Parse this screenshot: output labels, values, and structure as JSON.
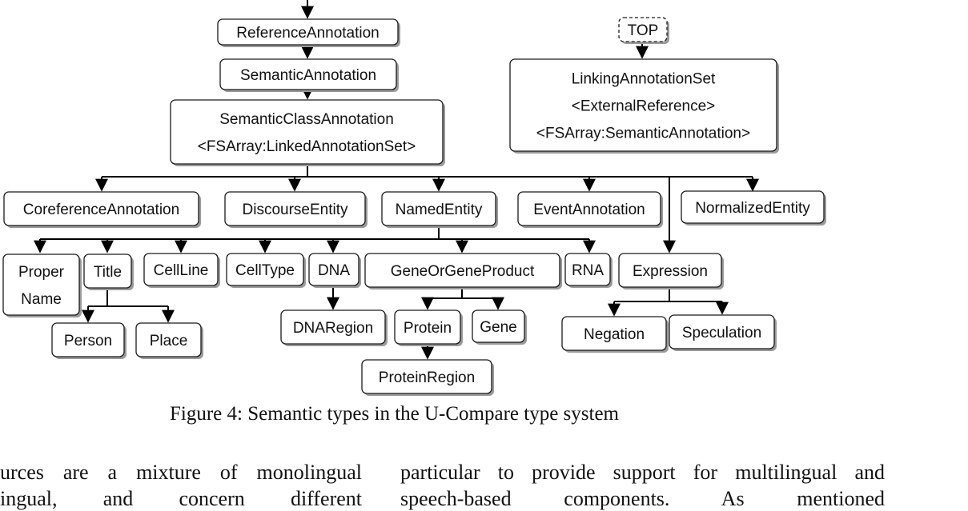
{
  "figure": {
    "caption": "Figure 4: Semantic types in the U-Compare type system",
    "nodes": [
      {
        "id": "reference_annotation",
        "lines": [
          "ReferenceAnnotation"
        ]
      },
      {
        "id": "semantic_annotation",
        "lines": [
          "SemanticAnnotation"
        ]
      },
      {
        "id": "semantic_class_annotation",
        "lines": [
          "SemanticClassAnnotation",
          "<FSArray:LinkedAnnotationSet>"
        ]
      },
      {
        "id": "top",
        "lines": [
          "TOP"
        ],
        "style": "dashed"
      },
      {
        "id": "linking_annotation_set",
        "lines": [
          "LinkingAnnotationSet",
          "<ExternalReference>",
          "<FSArray:SemanticAnnotation>"
        ]
      },
      {
        "id": "coreference_annotation",
        "lines": [
          "CoreferenceAnnotation"
        ]
      },
      {
        "id": "discourse_entity",
        "lines": [
          "DiscourseEntity"
        ]
      },
      {
        "id": "named_entity",
        "lines": [
          "NamedEntity"
        ]
      },
      {
        "id": "event_annotation",
        "lines": [
          "EventAnnotation"
        ]
      },
      {
        "id": "normalized_entity",
        "lines": [
          "NormalizedEntity"
        ]
      },
      {
        "id": "proper_name",
        "lines": [
          "Proper",
          "Name"
        ]
      },
      {
        "id": "title",
        "lines": [
          "Title"
        ]
      },
      {
        "id": "cell_line",
        "lines": [
          "CellLine"
        ]
      },
      {
        "id": "cell_type",
        "lines": [
          "CellType"
        ]
      },
      {
        "id": "dna",
        "lines": [
          "DNA"
        ]
      },
      {
        "id": "gene_or_gene_product",
        "lines": [
          "GeneOrGeneProduct"
        ]
      },
      {
        "id": "rna",
        "lines": [
          "RNA"
        ]
      },
      {
        "id": "expression",
        "lines": [
          "Expression"
        ]
      },
      {
        "id": "person",
        "lines": [
          "Person"
        ]
      },
      {
        "id": "place",
        "lines": [
          "Place"
        ]
      },
      {
        "id": "dna_region",
        "lines": [
          "DNARegion"
        ]
      },
      {
        "id": "protein",
        "lines": [
          "Protein"
        ]
      },
      {
        "id": "gene",
        "lines": [
          "Gene"
        ]
      },
      {
        "id": "protein_region",
        "lines": [
          "ProteinRegion"
        ]
      },
      {
        "id": "negation",
        "lines": [
          "Negation"
        ]
      },
      {
        "id": "speculation",
        "lines": [
          "Speculation"
        ]
      }
    ],
    "edges": [
      {
        "from": "reference_annotation",
        "to": "semantic_annotation"
      },
      {
        "from": "semantic_annotation",
        "to": "semantic_class_annotation"
      },
      {
        "from": "top",
        "to": "linking_annotation_set"
      },
      {
        "from": "semantic_class_annotation",
        "to": "coreference_annotation"
      },
      {
        "from": "semantic_class_annotation",
        "to": "discourse_entity"
      },
      {
        "from": "semantic_class_annotation",
        "to": "named_entity"
      },
      {
        "from": "semantic_class_annotation",
        "to": "event_annotation"
      },
      {
        "from": "semantic_class_annotation",
        "to": "normalized_entity"
      },
      {
        "from": "semantic_class_annotation",
        "to": "expression"
      },
      {
        "from": "named_entity",
        "to": "proper_name"
      },
      {
        "from": "named_entity",
        "to": "title"
      },
      {
        "from": "named_entity",
        "to": "cell_line"
      },
      {
        "from": "named_entity",
        "to": "cell_type"
      },
      {
        "from": "named_entity",
        "to": "dna"
      },
      {
        "from": "named_entity",
        "to": "gene_or_gene_product"
      },
      {
        "from": "named_entity",
        "to": "rna"
      },
      {
        "from": "title",
        "to": "person"
      },
      {
        "from": "title",
        "to": "place"
      },
      {
        "from": "dna",
        "to": "dna_region"
      },
      {
        "from": "gene_or_gene_product",
        "to": "protein"
      },
      {
        "from": "gene_or_gene_product",
        "to": "gene"
      },
      {
        "from": "protein",
        "to": "protein_region"
      },
      {
        "from": "expression",
        "to": "negation"
      },
      {
        "from": "expression",
        "to": "speculation"
      }
    ]
  },
  "body_text": {
    "left_column": [
      "urces are a mixture of monolingual",
      "ingual, and concern different"
    ],
    "right_column": [
      "particular to provide support for multilingual and",
      "speech-based components. As mentioned"
    ]
  }
}
